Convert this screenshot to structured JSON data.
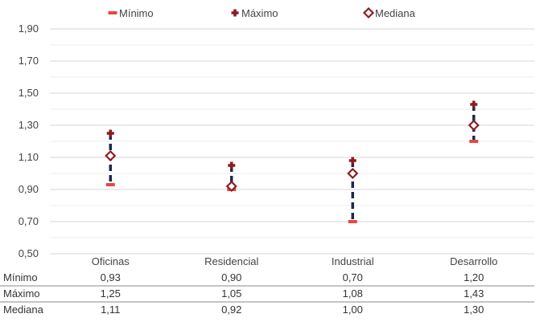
{
  "chart_data": {
    "type": "scatter",
    "categories": [
      "Oficinas",
      "Residencial",
      "Industrial",
      "Desarrollo"
    ],
    "series": [
      {
        "name": "Mínimo",
        "values": [
          0.93,
          0.9,
          0.7,
          1.2
        ],
        "color": "#e8463f",
        "marker": "dash"
      },
      {
        "name": "Máximo",
        "values": [
          1.25,
          1.05,
          1.08,
          1.43
        ],
        "color": "#8c1c22",
        "marker": "cross"
      },
      {
        "name": "Mediana",
        "values": [
          1.11,
          0.92,
          1.0,
          1.3
        ],
        "color": "#8c1c22",
        "marker": "diamond"
      }
    ],
    "ylim": [
      0.5,
      1.9
    ],
    "yticks": [
      0.5,
      0.7,
      0.9,
      1.1,
      1.3,
      1.5,
      1.7,
      1.9
    ],
    "ytick_labels": [
      "0,50",
      "0,70",
      "0,90",
      "1,10",
      "1,30",
      "1,50",
      "1,70",
      "1,90"
    ],
    "range_line_color": "#1c2b4a",
    "grid": true,
    "legend_position": "top",
    "data_table": {
      "rows": [
        {
          "label": "Mínimo",
          "cells": [
            "0,93",
            "0,90",
            "0,70",
            "1,20"
          ]
        },
        {
          "label": "Máximo",
          "cells": [
            "1,25",
            "1,05",
            "1,08",
            "1,43"
          ]
        },
        {
          "label": "Mediana",
          "cells": [
            "1,11",
            "0,92",
            "1,00",
            "1,30"
          ]
        }
      ]
    }
  }
}
